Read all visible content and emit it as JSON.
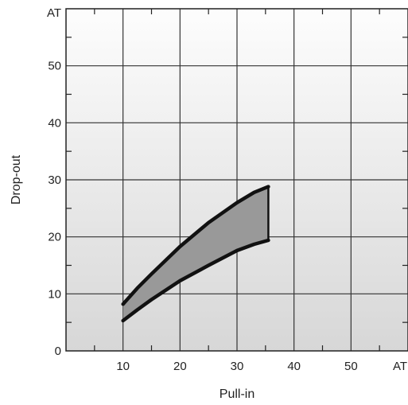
{
  "chart_data": {
    "type": "area",
    "xlabel": "Pull-in",
    "ylabel": "Drop-out",
    "xlim": [
      0,
      60
    ],
    "ylim": [
      0,
      60
    ],
    "x_unit_label": "AT",
    "y_unit_label": "AT",
    "x_tick_labels": [
      {
        "value": 10,
        "label": "10"
      },
      {
        "value": 20,
        "label": "20"
      },
      {
        "value": 30,
        "label": "30"
      },
      {
        "value": 40,
        "label": "40"
      },
      {
        "value": 50,
        "label": "50"
      }
    ],
    "y_tick_labels": [
      {
        "value": 0,
        "label": "0"
      },
      {
        "value": 10,
        "label": "10"
      },
      {
        "value": 20,
        "label": "20"
      },
      {
        "value": 30,
        "label": "30"
      },
      {
        "value": 40,
        "label": "40"
      },
      {
        "value": 50,
        "label": "50"
      }
    ],
    "major_grid_step": 10,
    "minor_tick_step": 5,
    "grid": true,
    "series": [
      {
        "x": [
          10,
          12.5,
          15,
          20,
          25,
          30,
          33,
          35.5
        ],
        "values": [
          8.2,
          11.0,
          13.5,
          18.3,
          22.5,
          26.0,
          27.8,
          28.8
        ]
      },
      {
        "x": [
          10,
          12.5,
          15,
          20,
          25,
          30,
          33,
          35.5
        ],
        "values": [
          5.3,
          7.2,
          9.0,
          12.3,
          15.0,
          17.6,
          18.7,
          19.4
        ]
      }
    ],
    "band_fill_color": "#999999",
    "curve_color": "#111111",
    "plot_background_top": "#fdfdfd",
    "plot_background_bottom": "#d7d7d7",
    "grid_color": "#333333"
  }
}
